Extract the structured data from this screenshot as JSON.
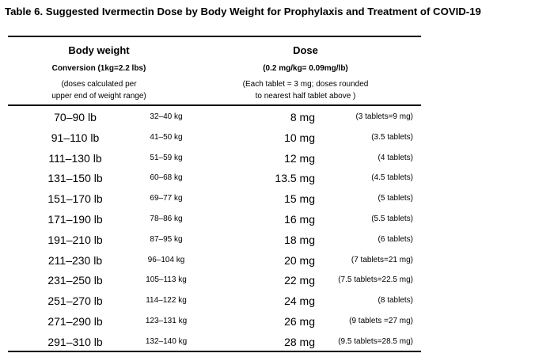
{
  "header": {
    "title": "Table 6.  Suggested Ivermectin Dose by Body Weight for Prophylaxis and Treatment of COVID-19"
  },
  "table": {
    "columns": [
      {
        "title": "Body weight",
        "subtitle": "Conversion (1kg=2.2 lbs)",
        "note": [
          "(doses calculated per",
          "upper end of weight range)"
        ]
      },
      {
        "title": "Dose",
        "subtitle": "(0.2 mg/kg= 0.09mg/lb)",
        "note": [
          "(Each tablet = 3 mg; doses rounded",
          "to nearest half tablet above )"
        ]
      }
    ],
    "rows": [
      [
        "70–90 lb",
        "32–40 kg",
        "8 mg",
        "(3 tablets=9 mg)"
      ],
      [
        "91–110 lb",
        "41–50 kg",
        "10 mg",
        "(3.5 tablets)"
      ],
      [
        "111–130 lb",
        "51–59 kg",
        "12 mg",
        "(4 tablets)"
      ],
      [
        "131–150 lb",
        "60–68 kg",
        "13.5 mg",
        "(4.5 tablets)"
      ],
      [
        "151–170 lb",
        "69–77 kg",
        "15 mg",
        "(5 tablets)"
      ],
      [
        "171–190 lb",
        "78–86 kg",
        "16 mg",
        "(5.5 tablets)"
      ],
      [
        "191–210 lb",
        "87–95 kg",
        "18 mg",
        "(6 tablets)"
      ],
      [
        "211–230 lb",
        "96–104 kg",
        "20 mg",
        "(7 tablets=21 mg)"
      ],
      [
        "231–250 lb",
        "105–113 kg",
        "22 mg",
        "(7.5 tablets=22.5 mg)"
      ],
      [
        "251–270 lb",
        "114–122 kg",
        "24 mg",
        "(8 tablets)"
      ],
      [
        "271–290 lb",
        "123–131 kg",
        "26 mg",
        "(9 tablets =27 mg)"
      ],
      [
        "291–310 lb",
        "132–140 kg",
        "28 mg",
        "(9.5 tablets=28.5 mg)"
      ]
    ]
  }
}
